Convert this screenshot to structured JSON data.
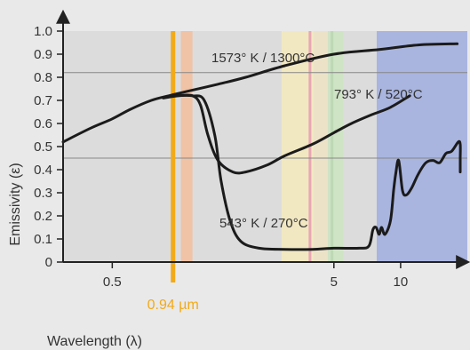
{
  "chart_data": {
    "type": "line",
    "xlabel": "Wavelength (λ)",
    "ylabel": "Emissivity (ε)",
    "x_scale": "log",
    "x_ticks": [
      {
        "value": 0.5,
        "label": "0.5"
      },
      {
        "value": 5,
        "label": "5"
      },
      {
        "value": 10,
        "label": "10"
      }
    ],
    "y_ticks": [
      {
        "value": 0,
        "label": "0"
      },
      {
        "value": 0.1,
        "label": "0.1"
      },
      {
        "value": 0.2,
        "label": "0.2"
      },
      {
        "value": 0.3,
        "label": "0.3"
      },
      {
        "value": 0.4,
        "label": "0.4"
      },
      {
        "value": 0.5,
        "label": "0.5"
      },
      {
        "value": 0.6,
        "label": "0.6"
      },
      {
        "value": 0.7,
        "label": "0.7"
      },
      {
        "value": 0.8,
        "label": "0.8"
      },
      {
        "value": 0.9,
        "label": "0.9"
      },
      {
        "value": 1.0,
        "label": "1.0"
      }
    ],
    "xlim": [
      0.3,
      20
    ],
    "ylim": [
      0,
      1.0
    ],
    "reference_lines_y": [
      0.82,
      0.45
    ],
    "marker": {
      "x": 0.94,
      "label": "0.94 µm",
      "color": "#f2aa18"
    },
    "bands": [
      {
        "from": 1.02,
        "to": 1.15,
        "color": "#f0c2a6"
      },
      {
        "from": 2.9,
        "to": 4.05,
        "color": "#f1e8c2"
      },
      {
        "from": 4.05,
        "to": 4.7,
        "color": "#ebe2c8"
      },
      {
        "from": 4.7,
        "to": 5.5,
        "color": "#cfe3c5"
      },
      {
        "from": 7.8,
        "to": 20,
        "color": "#a9b5df"
      }
    ],
    "band_lines": [
      {
        "x": 3.9,
        "color": "#e8a6b4"
      },
      {
        "x": 4.9,
        "color": "#bcd9b4"
      }
    ],
    "series": [
      {
        "name": "1573° K / 1300°C",
        "points": [
          [
            0.3,
            0.52
          ],
          [
            0.4,
            0.58
          ],
          [
            0.5,
            0.62
          ],
          [
            0.6,
            0.66
          ],
          [
            0.75,
            0.7
          ],
          [
            0.9,
            0.72
          ],
          [
            1.1,
            0.74
          ],
          [
            1.5,
            0.77
          ],
          [
            2,
            0.8
          ],
          [
            3,
            0.85
          ],
          [
            5,
            0.9
          ],
          [
            8,
            0.92
          ],
          [
            12,
            0.94
          ],
          [
            18,
            0.945
          ]
        ]
      },
      {
        "name": "793° K / 520°C",
        "points": [
          [
            0.85,
            0.71
          ],
          [
            1.0,
            0.72
          ],
          [
            1.15,
            0.72
          ],
          [
            1.25,
            0.68
          ],
          [
            1.35,
            0.55
          ],
          [
            1.5,
            0.44
          ],
          [
            1.75,
            0.39
          ],
          [
            2,
            0.39
          ],
          [
            2.5,
            0.42
          ],
          [
            3,
            0.46
          ],
          [
            4,
            0.51
          ],
          [
            5,
            0.56
          ],
          [
            6,
            0.6
          ],
          [
            7.5,
            0.64
          ],
          [
            9,
            0.67
          ],
          [
            11,
            0.72
          ]
        ]
      },
      {
        "name": "543° K / 270°C",
        "points": [
          [
            0.95,
            0.72
          ],
          [
            1.15,
            0.72
          ],
          [
            1.3,
            0.7
          ],
          [
            1.45,
            0.55
          ],
          [
            1.55,
            0.35
          ],
          [
            1.7,
            0.18
          ],
          [
            1.9,
            0.09
          ],
          [
            2.3,
            0.06
          ],
          [
            3,
            0.055
          ],
          [
            4,
            0.055
          ],
          [
            5,
            0.06
          ],
          [
            6.5,
            0.06
          ],
          [
            7.2,
            0.07
          ],
          [
            7.5,
            0.14
          ],
          [
            7.75,
            0.15
          ],
          [
            8,
            0.12
          ],
          [
            8.2,
            0.15
          ],
          [
            8.5,
            0.12
          ],
          [
            9,
            0.18
          ],
          [
            9.3,
            0.31
          ],
          [
            9.5,
            0.38
          ],
          [
            9.8,
            0.44
          ],
          [
            10.2,
            0.31
          ],
          [
            10.6,
            0.29
          ],
          [
            11.2,
            0.32
          ],
          [
            12,
            0.38
          ],
          [
            13,
            0.43
          ],
          [
            14,
            0.44
          ],
          [
            15,
            0.43
          ],
          [
            16,
            0.47
          ],
          [
            17,
            0.48
          ],
          [
            18.2,
            0.52
          ],
          [
            18.8,
            0.51
          ],
          [
            19.5,
            0.45
          ],
          [
            20,
            0.41
          ],
          [
            20.5,
            0.39
          ]
        ]
      }
    ],
    "curve_labels": [
      {
        "series": 0,
        "text": "1573° K / 1300°C"
      },
      {
        "series": 1,
        "text": "793° K / 520°C"
      },
      {
        "series": 2,
        "text": "543° K / 270°C"
      }
    ]
  }
}
